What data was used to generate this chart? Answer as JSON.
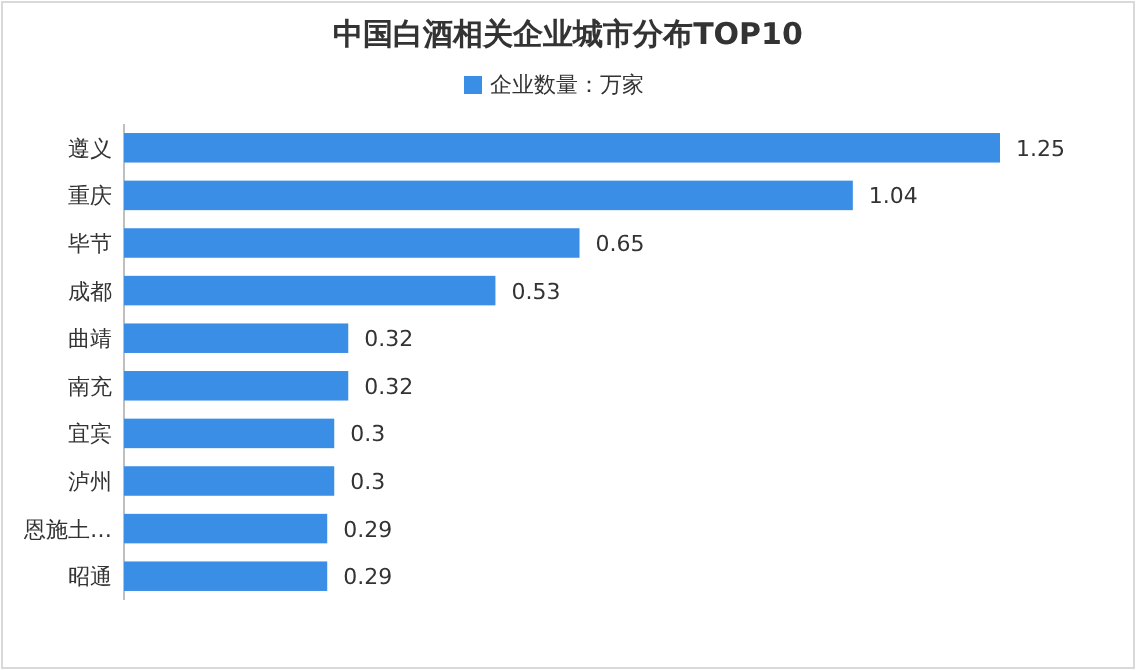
{
  "chart_data": {
    "type": "bar",
    "orientation": "horizontal",
    "title": "中国白酒相关企业城市分布TOP10",
    "categories": [
      "遵义",
      "重庆",
      "毕节",
      "成都",
      "曲靖",
      "南充",
      "宜宾",
      "泸州",
      "恩施土…",
      "昭通"
    ],
    "series": [
      {
        "name": "企业数量：万家",
        "color": "#3a8ee6",
        "values": [
          1.25,
          1.04,
          0.65,
          0.53,
          0.32,
          0.32,
          0.3,
          0.3,
          0.29,
          0.29
        ]
      }
    ],
    "data_labels": true,
    "legend": "top"
  }
}
